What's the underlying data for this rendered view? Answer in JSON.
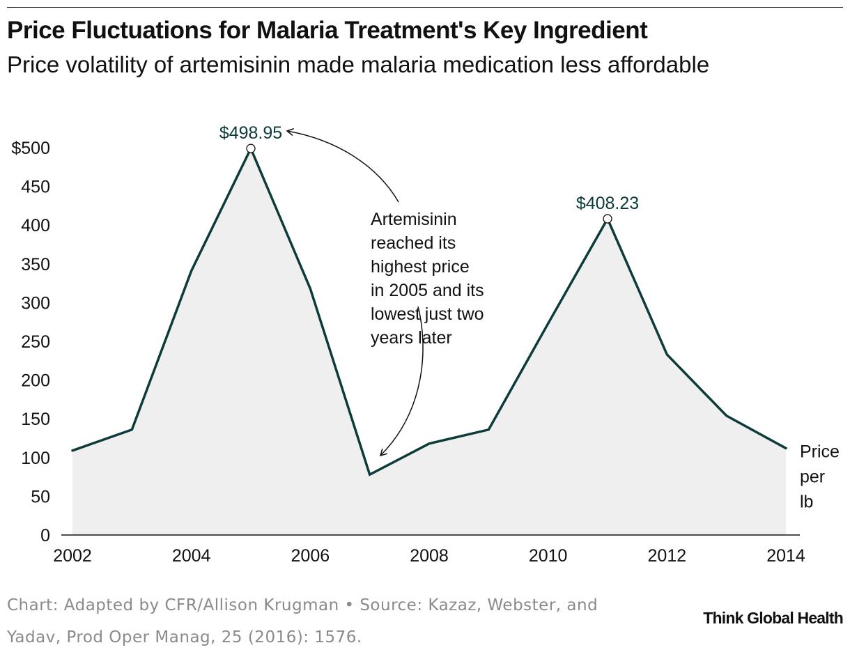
{
  "header": {
    "title": "Price Fluctuations for Malaria Treatment's Key Ingredient",
    "subtitle": "Price volatility of artemisinin made malaria medication less affordable"
  },
  "chart_data": {
    "type": "area",
    "x": [
      2002,
      2003,
      2004,
      2005,
      2006,
      2007,
      2008,
      2009,
      2010,
      2011,
      2012,
      2013,
      2014
    ],
    "series": [
      {
        "name": "Price per lb",
        "values": [
          109,
          136,
          341,
          498.95,
          318,
          78,
          118,
          136,
          273,
          408.23,
          233,
          154,
          112
        ]
      }
    ],
    "xlim": [
      2002,
      2014
    ],
    "ylim": [
      0,
      500
    ],
    "x_ticks": [
      2002,
      2004,
      2006,
      2008,
      2010,
      2012,
      2014
    ],
    "x_tick_labels": [
      "2002",
      "2004",
      "2006",
      "2008",
      "2010",
      "2012",
      "2014"
    ],
    "y_ticks": [
      0,
      50,
      100,
      150,
      200,
      250,
      300,
      350,
      400,
      450,
      500
    ],
    "y_tick_labels": [
      "0",
      "50",
      "100",
      "150",
      "200",
      "250",
      "300",
      "350",
      "400",
      "450",
      "$500"
    ],
    "series_label_lines": [
      "Price",
      "per",
      "lb"
    ],
    "point_labels": [
      {
        "x": 2005,
        "y": 498.95,
        "text": "$498.95"
      },
      {
        "x": 2011,
        "y": 408.23,
        "text": "$408.23"
      }
    ],
    "annotation": {
      "lines": [
        "Artemisinin",
        "reached its",
        "highest price",
        "in 2005 and its",
        "lowest just two",
        "years later"
      ]
    },
    "grid": false,
    "legend": "none",
    "colors": {
      "line": "#0d3b3a",
      "area_fill": "#efefef",
      "point_label": "#0d3b3a",
      "axis": "#111111"
    }
  },
  "footer": {
    "source_lines": [
      "Chart: Adapted by CFR/Allison Krugman • Source: Kazaz, Webster, and",
      "Yadav, Prod Oper Manag, 25 (2016): 1576."
    ],
    "brand": "Think Global Health"
  }
}
